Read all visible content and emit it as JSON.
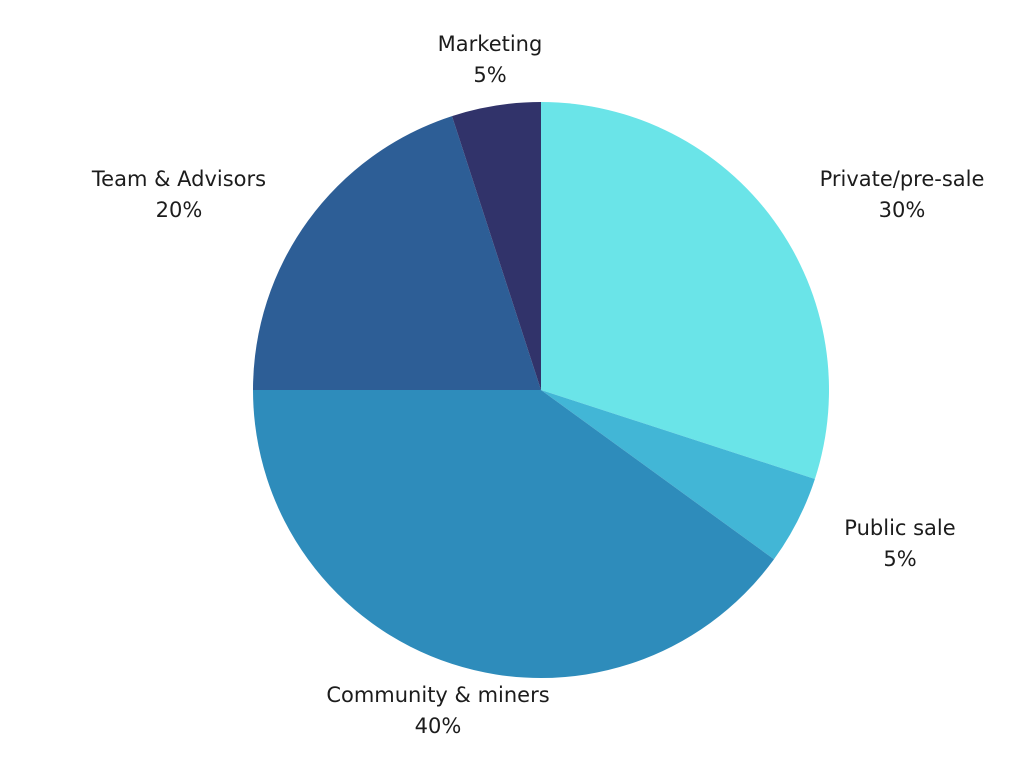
{
  "chart_data": {
    "type": "pie",
    "slices": [
      {
        "label": "Private/pre-sale",
        "value": 30,
        "value_label": "30%",
        "color": "#6ae4e8"
      },
      {
        "label": "Public sale",
        "value": 5,
        "value_label": "5%",
        "color": "#42b6d6"
      },
      {
        "label": "Community & miners",
        "value": 40,
        "value_label": "40%",
        "color": "#2e8cbb"
      },
      {
        "label": "Team & Advisors",
        "value": 20,
        "value_label": "20%",
        "color": "#2d5e96"
      },
      {
        "label": "Marketing",
        "value": 5,
        "value_label": "5%",
        "color": "#31336a"
      }
    ],
    "start": "top",
    "direction": "clockwise",
    "legend": "none",
    "labels_outside": true
  }
}
